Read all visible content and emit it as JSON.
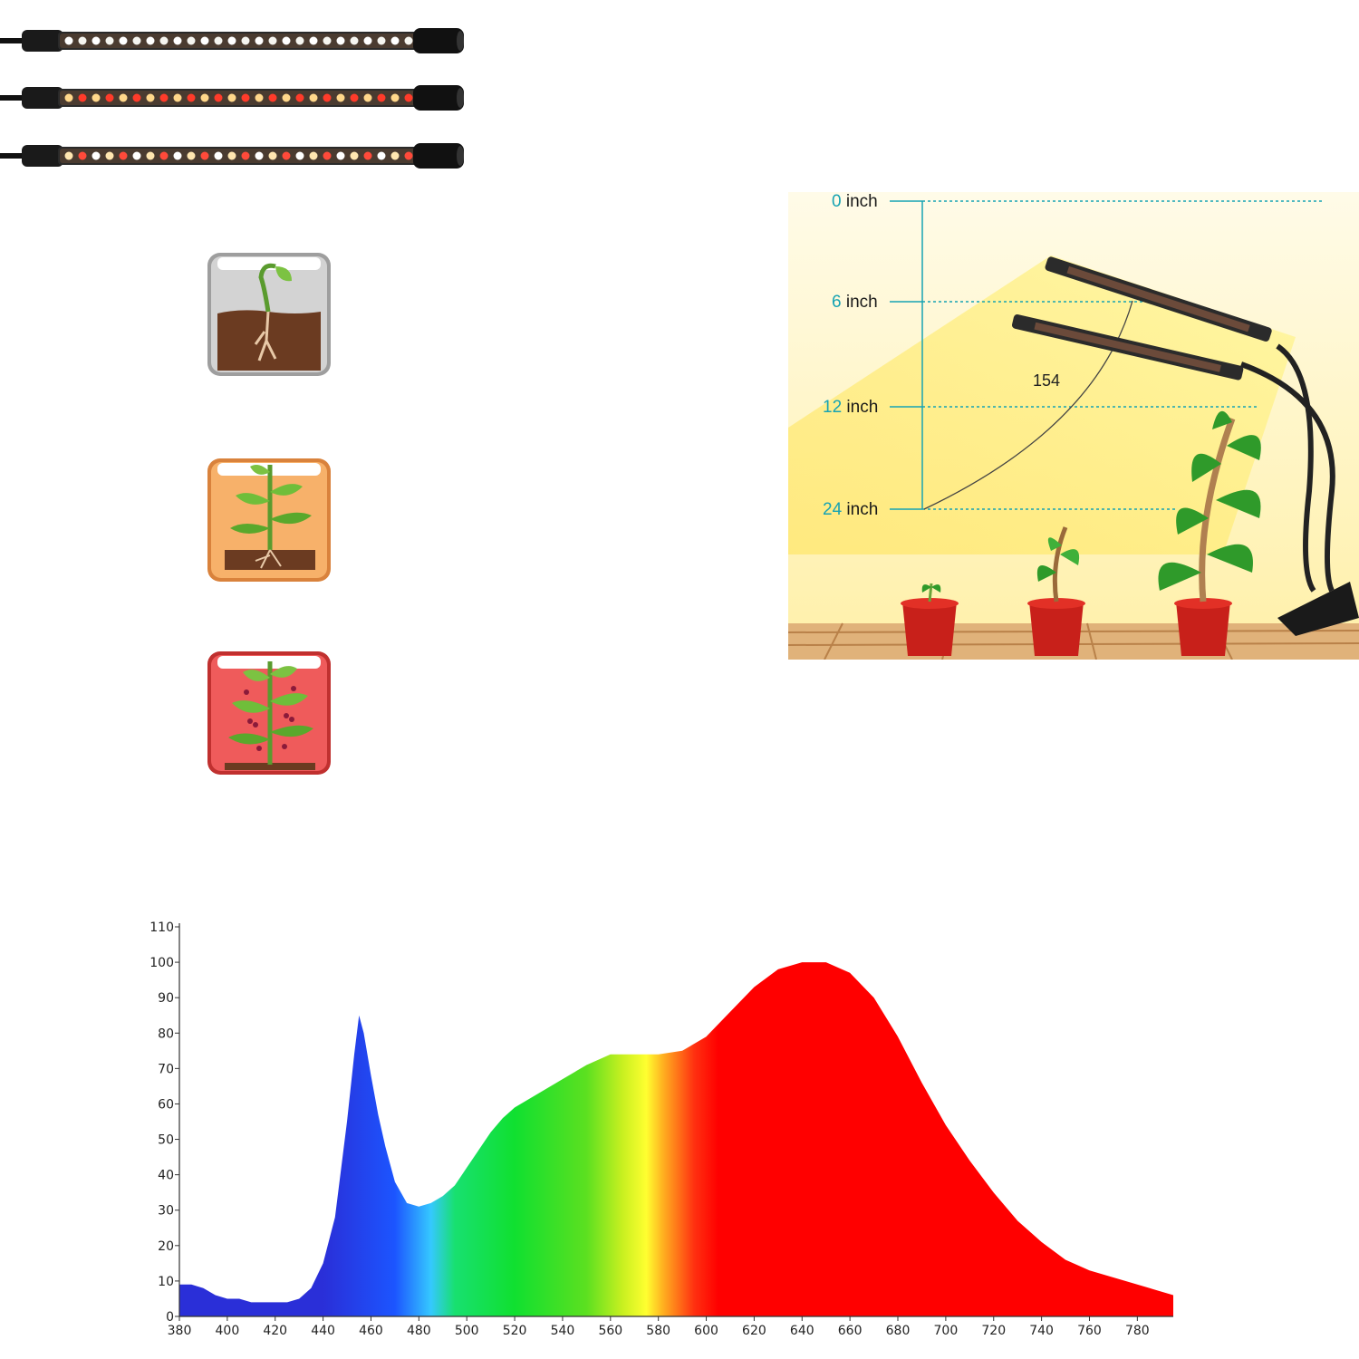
{
  "light_bars": [
    {
      "name": "white",
      "led_colors": [
        "#ffffff",
        "#f5f5f0"
      ]
    },
    {
      "name": "warm-red",
      "led_colors": [
        "#ffd78a",
        "#ff3b2a"
      ]
    },
    {
      "name": "mixed",
      "led_colors": [
        "#ffe6b0",
        "#ff4a3a",
        "#ffffff"
      ]
    }
  ],
  "growth_stages": [
    {
      "name": "seedling",
      "bg": "#cfcfcf"
    },
    {
      "name": "vegetative",
      "bg": "#f7b16a"
    },
    {
      "name": "flowering",
      "bg": "#ef5b5b"
    }
  ],
  "height_panel": {
    "labels": [
      {
        "num": "0",
        "unit": " inch"
      },
      {
        "num": "6",
        "unit": " inch"
      },
      {
        "num": "12",
        "unit": " inch"
      },
      {
        "num": "24",
        "unit": " inch"
      }
    ],
    "angle": "154",
    "accent": "#17a3b3"
  },
  "chart_data": {
    "type": "area",
    "xlabel": "",
    "ylabel": "",
    "xlim": [
      380,
      795
    ],
    "ylim": [
      0,
      110
    ],
    "x_ticks": [
      380,
      400,
      420,
      440,
      460,
      480,
      500,
      520,
      540,
      560,
      580,
      600,
      620,
      640,
      660,
      680,
      700,
      720,
      740,
      760,
      780
    ],
    "y_ticks": [
      0,
      10,
      20,
      30,
      40,
      50,
      60,
      70,
      80,
      90,
      100,
      110
    ],
    "x": [
      380,
      385,
      390,
      395,
      400,
      405,
      410,
      415,
      420,
      425,
      430,
      435,
      440,
      445,
      450,
      453,
      455,
      457,
      460,
      463,
      466,
      470,
      475,
      480,
      485,
      490,
      495,
      500,
      505,
      510,
      515,
      520,
      530,
      540,
      550,
      560,
      570,
      580,
      590,
      600,
      610,
      620,
      630,
      640,
      650,
      660,
      670,
      680,
      690,
      700,
      710,
      720,
      730,
      740,
      750,
      760,
      770,
      780,
      790,
      795
    ],
    "y": [
      9,
      9,
      8,
      6,
      5,
      5,
      4,
      4,
      4,
      4,
      5,
      8,
      15,
      28,
      55,
      74,
      85,
      80,
      68,
      57,
      48,
      38,
      32,
      31,
      32,
      34,
      37,
      42,
      47,
      52,
      56,
      59,
      63,
      67,
      71,
      74,
      74,
      74,
      75,
      79,
      86,
      93,
      98,
      100,
      100,
      97,
      90,
      79,
      66,
      54,
      44,
      35,
      27,
      21,
      16,
      13,
      11,
      9,
      7,
      6
    ]
  }
}
